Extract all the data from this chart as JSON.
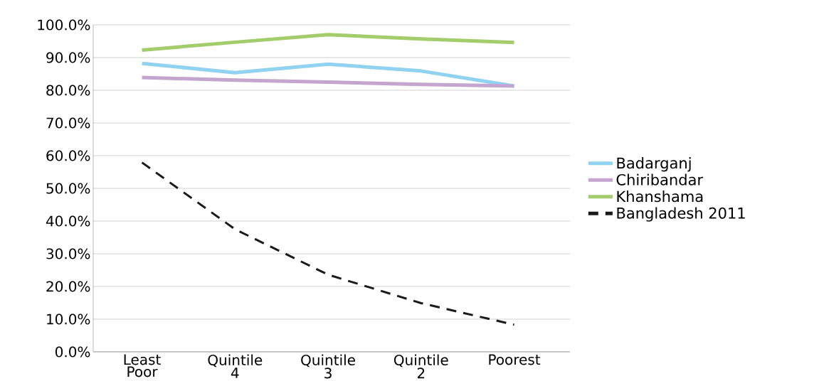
{
  "chart_data": {
    "type": "line",
    "categories": [
      "Least Poor",
      "Quintile 4",
      "Quintile 3",
      "Quintile 2",
      "Poorest"
    ],
    "series": [
      {
        "name": "Badarganj",
        "color": "#8fd3f0",
        "values": [
          88.2,
          85.4,
          88.0,
          85.9,
          81.3
        ]
      },
      {
        "name": "Chiribandar",
        "color": "#c3a5d0",
        "values": [
          83.9,
          83.1,
          82.5,
          81.8,
          81.3
        ]
      },
      {
        "name": "Khanshama",
        "color": "#a3cd6a",
        "values": [
          92.3,
          94.7,
          97.0,
          95.7,
          94.6
        ]
      },
      {
        "name": "Bangladesh 2011",
        "color": "#1a1a1a",
        "line_style": "dashed",
        "values": [
          57.9,
          37.5,
          23.6,
          14.9,
          8.3
        ]
      }
    ],
    "ylim": [
      0,
      100
    ],
    "yticks": [
      {
        "value": 0,
        "label": "0.0%"
      },
      {
        "value": 10,
        "label": "10.0%"
      },
      {
        "value": 20,
        "label": "20.0%"
      },
      {
        "value": 30,
        "label": "30.0%"
      },
      {
        "value": 40,
        "label": "40.0%"
      },
      {
        "value": 50,
        "label": "50.0%"
      },
      {
        "value": 60,
        "label": "60.0%"
      },
      {
        "value": 70,
        "label": "70.0%"
      },
      {
        "value": 80,
        "label": "80.0%"
      },
      {
        "value": 90,
        "label": "90.0%"
      },
      {
        "value": 100,
        "label": "100.0%"
      }
    ],
    "grid": "y",
    "legend": "right"
  }
}
